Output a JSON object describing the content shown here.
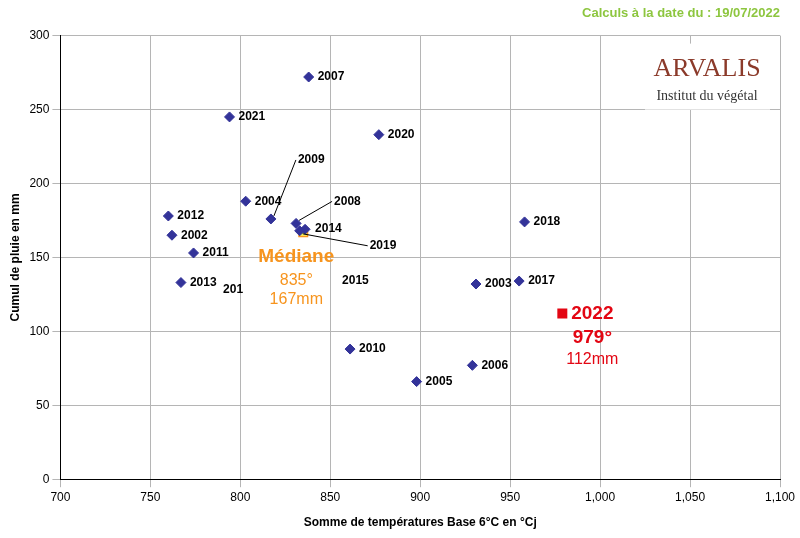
{
  "chart_data": {
    "type": "scatter",
    "title": "Calculs à la date du : 19/07/2022",
    "logo": [
      "ARVALIS",
      "Institut du végétal"
    ],
    "x_label": "Somme de températures Base 6°C en °Cj",
    "y_label": "Cumul de pluie en mm",
    "marker": "diamond",
    "color": "#333399",
    "points": [
      {
        "label": "2007",
        "x": 838,
        "y": 272
      },
      {
        "label": "2021",
        "x": 794,
        "y": 245
      },
      {
        "label": "2020",
        "x": 877,
        "y": 233
      },
      {
        "label": "2004",
        "x": 803,
        "y": 188
      },
      {
        "label": "2009",
        "x": 817,
        "y": 176
      },
      {
        "label": "2008",
        "x": 831,
        "y": 173
      },
      {
        "label": "2014",
        "x": 836,
        "y": 169
      },
      {
        "label": "2019",
        "x": 833,
        "y": 168
      },
      {
        "label": "2012",
        "x": 760,
        "y": 178
      },
      {
        "label": "2002",
        "x": 762,
        "y": 165
      },
      {
        "label": "2011",
        "x": 774,
        "y": 153
      },
      {
        "label": "2013",
        "x": 767,
        "y": 133
      },
      {
        "label": "2010",
        "x": 861,
        "y": 88
      },
      {
        "label": "2005",
        "x": 898,
        "y": 66
      },
      {
        "label": "2006",
        "x": 929,
        "y": 77
      },
      {
        "label": "2003",
        "x": 931,
        "y": 132
      },
      {
        "label": "2017",
        "x": 955,
        "y": 134
      },
      {
        "label": "2018",
        "x": 958,
        "y": 174
      }
    ],
    "highlights": [
      {
        "lines": [
          "Médiane",
          "835°",
          "167mm"
        ],
        "x": 835,
        "y": 167,
        "color": "#ffff66",
        "marker": "square"
      },
      {
        "lines": [
          "2022",
          "979°",
          "112mm"
        ],
        "x": 979,
        "y": 112,
        "color": "#e30613",
        "marker": "square"
      }
    ],
    "annotations": [
      {
        "text": "201",
        "x": 796,
        "y": 128
      },
      {
        "text": "2015",
        "x": 864,
        "y": 134
      }
    ],
    "xlim": [
      700,
      1100
    ],
    "xticks": [
      700,
      750,
      800,
      850,
      900,
      950,
      1000,
      1050,
      1100
    ],
    "ylim": [
      0,
      300
    ],
    "yticks": [
      0,
      50,
      100,
      150,
      200,
      250,
      300
    ],
    "grid": true
  }
}
